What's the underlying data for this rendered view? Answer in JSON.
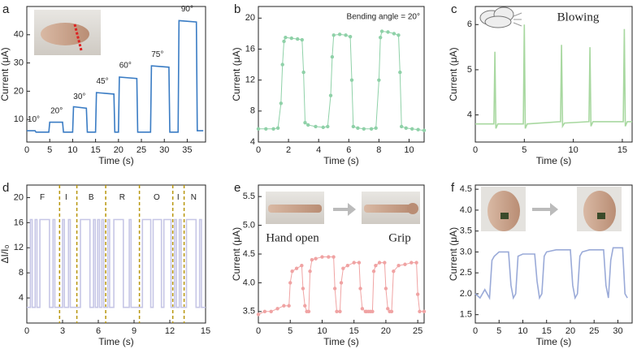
{
  "chart_data": [
    {
      "type": "line",
      "label": "a",
      "xlabel": "Time (s)",
      "ylabel": "Current (μA)",
      "xlim": [
        0,
        39
      ],
      "ylim": [
        2,
        50
      ],
      "xticks": [
        0,
        5,
        10,
        15,
        20,
        25,
        30,
        35
      ],
      "yticks": [
        10,
        20,
        30,
        40
      ],
      "annotations": [
        "10°",
        "20°",
        "30°",
        "45°",
        "60°",
        "75°",
        "90°"
      ],
      "series": [
        {
          "color": "#3a7cc4",
          "x": [
            0,
            1.8,
            2,
            4.8,
            5,
            7.8,
            8,
            10,
            10.2,
            13,
            13.2,
            15,
            15.2,
            19,
            19.2,
            20,
            20.2,
            24,
            24.2,
            27,
            27.2,
            31,
            31.2,
            33,
            33.2,
            37,
            37.2,
            38.5
          ],
          "values": [
            6,
            6,
            5.5,
            5.5,
            9,
            9,
            5.5,
            5.5,
            14.5,
            14,
            5.5,
            5.5,
            19.5,
            19,
            5.5,
            5.5,
            25,
            24.5,
            5.5,
            5.5,
            29,
            28.5,
            5.5,
            5.5,
            45,
            44.5,
            6,
            6
          ]
        }
      ]
    },
    {
      "type": "line",
      "markers": true,
      "label": "b",
      "xlabel": "Time (s)",
      "ylabel": "Current (μA)",
      "xlim": [
        0,
        11
      ],
      "ylim": [
        4,
        21.5
      ],
      "xticks": [
        0,
        2,
        4,
        6,
        8,
        10
      ],
      "yticks": [
        4,
        8,
        12,
        16,
        20
      ],
      "annotations": [
        "Bending angle = 20°"
      ],
      "series": [
        {
          "color": "#8fd1a8",
          "x": [
            0,
            0.5,
            1,
            1.3,
            1.5,
            1.6,
            1.7,
            1.8,
            2.2,
            2.6,
            2.9,
            3.0,
            3.1,
            3.3,
            3.8,
            4.3,
            4.6,
            4.8,
            4.9,
            5.0,
            5.4,
            5.8,
            6.1,
            6.2,
            6.3,
            6.6,
            7.0,
            7.5,
            7.8,
            8.0,
            8.1,
            8.2,
            8.6,
            9.0,
            9.3,
            9.4,
            9.5,
            9.8,
            10.2,
            10.6,
            11
          ],
          "values": [
            5.7,
            5.7,
            5.7,
            5.8,
            9,
            14,
            17,
            17.5,
            17.4,
            17.3,
            17.2,
            13,
            6.5,
            6.2,
            6,
            5.9,
            6,
            10,
            15,
            17.8,
            17.9,
            17.8,
            17.6,
            12,
            6,
            5.8,
            5.7,
            5.7,
            5.8,
            12,
            17.5,
            18.3,
            18.2,
            18,
            17.8,
            13,
            6,
            5.8,
            5.7,
            5.6,
            5.5
          ]
        }
      ]
    },
    {
      "type": "line",
      "label": "c",
      "xlabel": "Time (s)",
      "ylabel": "Current (μA)",
      "xlim": [
        0,
        16
      ],
      "ylim": [
        3.4,
        6.4
      ],
      "xticks": [
        0,
        5,
        10,
        15
      ],
      "yticks": [
        4,
        5,
        6
      ],
      "annotations": [
        "Blowing"
      ],
      "series": [
        {
          "color": "#a8d8a0",
          "x": [
            0,
            1.9,
            2.0,
            2.1,
            2.3,
            4.9,
            5.0,
            5.1,
            5.3,
            8.7,
            8.8,
            8.9,
            9.1,
            11.6,
            11.7,
            11.8,
            12,
            15.1,
            15.2,
            15.3,
            15.5,
            16
          ],
          "values": [
            3.8,
            3.8,
            5.4,
            3.7,
            3.8,
            3.8,
            6.0,
            3.7,
            3.8,
            3.85,
            5.55,
            3.75,
            3.82,
            3.85,
            5.5,
            3.75,
            3.85,
            3.85,
            5.9,
            3.75,
            3.85,
            3.85
          ]
        }
      ]
    },
    {
      "type": "line",
      "label": "d",
      "xlabel": "Time (s)",
      "ylabel": "ΔI/I₀",
      "xlim": [
        0,
        15
      ],
      "ylim": [
        0,
        22
      ],
      "xticks": [
        0,
        3,
        6,
        9,
        12,
        15
      ],
      "yticks": [
        4,
        8,
        12,
        16,
        20
      ],
      "annotations": [
        "F",
        "I",
        "B",
        "R",
        "O",
        "I",
        "N"
      ],
      "dividers": [
        2.75,
        4.2,
        6.62,
        9.45,
        12.25,
        13.2
      ],
      "series": [
        {
          "color": "#c6c6e6",
          "x": [
            0,
            0.3,
            0.3,
            0.45,
            0.45,
            0.7,
            0.7,
            0.85,
            0.85,
            1.1,
            1.1,
            1.9,
            1.9,
            2.2,
            2.2,
            2.35,
            2.35,
            3.0,
            3.0,
            3.15,
            3.15,
            3.5,
            3.5,
            3.65,
            3.65,
            4.5,
            4.5,
            5.3,
            5.3,
            5.6,
            5.6,
            5.75,
            5.75,
            5.95,
            5.95,
            6.1,
            6.1,
            6.3,
            6.3,
            6.45,
            6.45,
            6.8,
            6.8,
            6.95,
            6.95,
            7.3,
            7.3,
            8.1,
            8.1,
            8.6,
            8.6,
            8.75,
            8.75,
            9.7,
            9.7,
            10.4,
            10.4,
            10.6,
            10.6,
            11.3,
            11.3,
            11.5,
            11.5,
            12.1,
            12.1,
            12.4,
            12.4,
            12.55,
            12.55,
            12.8,
            12.8,
            12.95,
            12.95,
            13.4,
            13.4,
            14.2,
            14.2,
            14.5,
            14.5,
            14.65,
            14.65,
            15
          ],
          "values": [
            2.5,
            2.5,
            16.5,
            16.5,
            2.5,
            2.5,
            16.5,
            16.5,
            2.5,
            2.5,
            16.5,
            16.5,
            2.5,
            2.5,
            16.5,
            16.5,
            2.5,
            2.5,
            16.5,
            16.5,
            2.5,
            2.5,
            16.5,
            16.5,
            2.5,
            2.5,
            16.5,
            16.5,
            2.5,
            2.5,
            16.5,
            16.5,
            2.5,
            2.5,
            16.5,
            16.5,
            2.5,
            2.5,
            16.5,
            16.5,
            2.5,
            2.5,
            16.5,
            16.5,
            2.5,
            2.5,
            16.5,
            16.5,
            2.5,
            2.5,
            16.5,
            16.5,
            2.5,
            2.5,
            16.5,
            16.5,
            2.5,
            2.5,
            16.5,
            16.5,
            2.5,
            2.5,
            16.5,
            16.5,
            2.5,
            2.5,
            16.5,
            16.5,
            2.5,
            2.5,
            16.5,
            16.5,
            2.5,
            2.5,
            16.5,
            16.5,
            2.5,
            2.5,
            16.5,
            16.5,
            2.5,
            2.5
          ]
        }
      ]
    },
    {
      "type": "line",
      "markers": true,
      "label": "e",
      "xlabel": "Time (s)",
      "ylabel": "Current (μA)",
      "xlim": [
        0,
        26
      ],
      "ylim": [
        3.3,
        5.7
      ],
      "xticks": [
        0,
        5,
        10,
        15,
        20,
        25
      ],
      "yticks": [
        3.5,
        {
          "value": 4,
          "label": "4.0"
        },
        4.5,
        {
          "value": 5,
          "label": "5.0"
        },
        5.5
      ],
      "annotations": [
        "Hand open",
        "Grip"
      ],
      "series": [
        {
          "color": "#f0a3a3",
          "x": [
            0,
            1,
            2,
            3,
            4,
            4.8,
            5,
            5.3,
            6,
            6.8,
            7,
            7.3,
            7.6,
            7.9,
            8.1,
            8.4,
            9,
            10,
            11,
            11.8,
            12,
            12.3,
            12.8,
            13,
            13.3,
            14,
            15,
            15.8,
            16,
            16.3,
            16.8,
            17,
            17.3,
            17.6,
            17.9,
            18.1,
            18.4,
            19,
            19.8,
            20,
            20.3,
            20.6,
            20.9,
            21.2,
            22,
            23,
            24,
            24.8,
            25,
            25.3,
            26
          ],
          "values": [
            3.45,
            3.5,
            3.5,
            3.55,
            3.6,
            3.6,
            4.0,
            4.2,
            4.25,
            4.3,
            3.9,
            3.6,
            3.5,
            3.5,
            4.2,
            4.4,
            4.42,
            4.45,
            4.45,
            4.45,
            3.9,
            3.5,
            3.5,
            4.0,
            4.25,
            4.3,
            4.35,
            4.35,
            3.9,
            3.55,
            3.5,
            3.5,
            3.5,
            3.5,
            3.5,
            4.2,
            4.3,
            4.35,
            4.35,
            3.9,
            3.55,
            3.5,
            3.5,
            4.2,
            4.3,
            4.32,
            4.35,
            4.35,
            3.8,
            3.5,
            3.5
          ]
        }
      ]
    },
    {
      "type": "line",
      "label": "f",
      "xlabel": "Time (s)",
      "ylabel": "Current (μA)",
      "xlim": [
        0,
        33
      ],
      "ylim": [
        1.3,
        4.6
      ],
      "xticks": [
        0,
        5,
        10,
        15,
        20,
        25,
        30
      ],
      "yticks": [
        1.5,
        {
          "value": 2,
          "label": "2.0"
        },
        2.5,
        {
          "value": 3,
          "label": "3.0"
        },
        3.5,
        {
          "value": 4,
          "label": "4.0"
        },
        4.5
      ],
      "series": [
        {
          "color": "#9aaad8",
          "x": [
            0,
            1,
            2,
            3,
            3.5,
            4,
            5,
            7,
            7.5,
            8,
            8.5,
            9,
            10,
            12.5,
            13,
            13.5,
            14,
            14.5,
            15,
            17,
            20,
            20.5,
            21,
            21.5,
            22,
            22.5,
            24,
            27,
            27.5,
            28,
            28.5,
            29,
            31,
            31.5,
            32
          ],
          "values": [
            2.0,
            1.9,
            2.1,
            1.9,
            2.8,
            2.9,
            3.0,
            3.0,
            2.2,
            1.9,
            2.0,
            2.9,
            2.95,
            2.95,
            2.3,
            1.9,
            2.0,
            2.9,
            3.0,
            3.05,
            3.05,
            2.2,
            1.9,
            2.0,
            2.9,
            3.0,
            3.05,
            3.05,
            2.2,
            1.9,
            2.8,
            3.1,
            3.1,
            2.0,
            1.9
          ]
        }
      ]
    }
  ]
}
